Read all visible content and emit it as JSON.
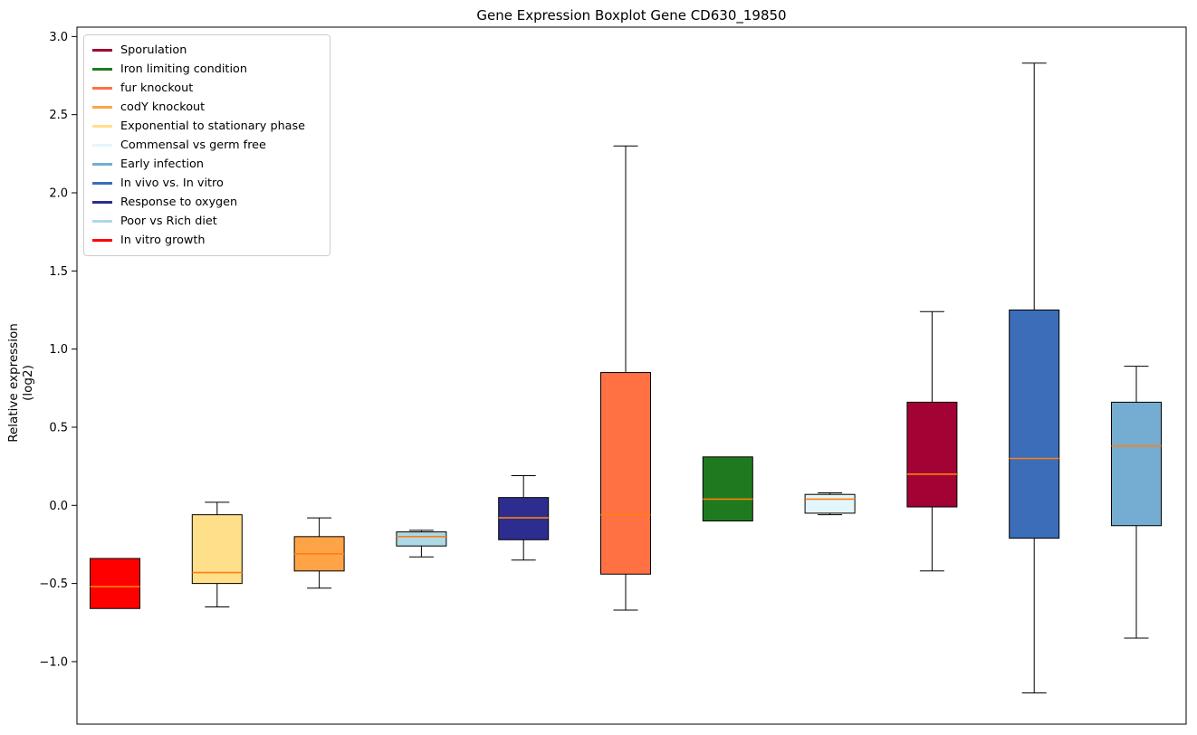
{
  "chart_data": {
    "type": "boxplot",
    "title": "Gene Expression Boxplot Gene CD630_19850",
    "ylabel": "Relative expression (log2)",
    "ylim": [
      -1.4,
      3.06
    ],
    "grid": false,
    "legend_position": "upper left",
    "median_color": "#ff7f0e",
    "axis_color": "#000000",
    "yticks": [
      {
        "value": 3.0,
        "label": "3.0"
      },
      {
        "value": 2.5,
        "label": "2.5"
      },
      {
        "value": 2.0,
        "label": "2.0"
      },
      {
        "value": 1.5,
        "label": "1.5"
      },
      {
        "value": 1.0,
        "label": "1.0"
      },
      {
        "value": 0.5,
        "label": "0.5"
      },
      {
        "value": 0.0,
        "label": "0.0"
      },
      {
        "value": -0.5,
        "label": "−0.5"
      },
      {
        "value": -1.0,
        "label": "−1.0"
      }
    ],
    "legend": [
      {
        "label": "Sporulation",
        "color": "#a30234"
      },
      {
        "label": "Iron limiting condition",
        "color": "#1f7a1f"
      },
      {
        "label": "fur knockout",
        "color": "#ff7043"
      },
      {
        "label": "codY knockout",
        "color": "#ffa347"
      },
      {
        "label": "Exponential to stationary phase",
        "color": "#ffe08a"
      },
      {
        "label": "Commensal vs germ free",
        "color": "#e3f6fb"
      },
      {
        "label": "Early infection",
        "color": "#74add1"
      },
      {
        "label": "In vivo vs. In vitro",
        "color": "#3b6db8"
      },
      {
        "label": "Response to oxygen",
        "color": "#2d2d8f"
      },
      {
        "label": "Poor vs Rich diet",
        "color": "#add8e6"
      },
      {
        "label": "In vitro growth",
        "color": "#ff0000"
      }
    ],
    "boxes": [
      {
        "name": "In vitro growth",
        "color": "#ff0000",
        "whislo": -0.66,
        "q1": -0.66,
        "med": -0.52,
        "q3": -0.34,
        "whishi": -0.34,
        "caps": false
      },
      {
        "name": "Exponential to stationary phase",
        "color": "#ffe08a",
        "whislo": -0.65,
        "q1": -0.5,
        "med": -0.43,
        "q3": -0.06,
        "whishi": 0.02,
        "caps": true
      },
      {
        "name": "codY knockout",
        "color": "#ffa347",
        "whislo": -0.53,
        "q1": -0.42,
        "med": -0.31,
        "q3": -0.2,
        "whishi": -0.08,
        "caps": true
      },
      {
        "name": "Poor vs Rich diet",
        "color": "#add8e6",
        "whislo": -0.33,
        "q1": -0.26,
        "med": -0.2,
        "q3": -0.17,
        "whishi": -0.16,
        "caps": true
      },
      {
        "name": "Response to oxygen",
        "color": "#2d2d8f",
        "whislo": -0.35,
        "q1": -0.22,
        "med": -0.08,
        "q3": 0.05,
        "whishi": 0.19,
        "caps": true
      },
      {
        "name": "fur knockout",
        "color": "#ff7043",
        "whislo": -0.67,
        "q1": -0.44,
        "med": -0.06,
        "q3": 0.85,
        "whishi": 2.3,
        "caps": true
      },
      {
        "name": "Iron limiting condition",
        "color": "#1f7a1f",
        "whislo": -0.1,
        "q1": -0.1,
        "med": 0.04,
        "q3": 0.31,
        "whishi": 0.31,
        "caps": false
      },
      {
        "name": "Commensal vs germ free",
        "color": "#e3f6fb",
        "whislo": -0.06,
        "q1": -0.05,
        "med": 0.04,
        "q3": 0.07,
        "whishi": 0.08,
        "caps": true
      },
      {
        "name": "Sporulation",
        "color": "#a30234",
        "whislo": -0.42,
        "q1": -0.01,
        "med": 0.2,
        "q3": 0.66,
        "whishi": 1.24,
        "caps": true
      },
      {
        "name": "In vivo vs. In vitro",
        "color": "#3b6db8",
        "whislo": -1.2,
        "q1": -0.21,
        "med": 0.3,
        "q3": 1.25,
        "whishi": 2.83,
        "caps": true
      },
      {
        "name": "Early infection",
        "color": "#74add1",
        "whislo": -0.85,
        "q1": -0.13,
        "med": 0.38,
        "q3": 0.66,
        "whishi": 0.89,
        "caps": true
      }
    ]
  }
}
